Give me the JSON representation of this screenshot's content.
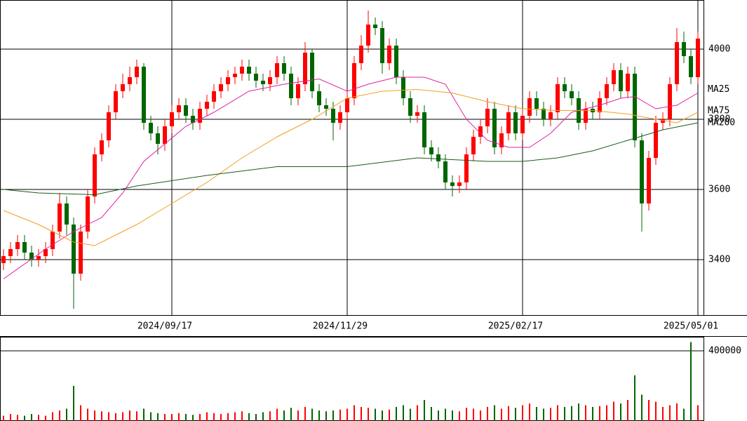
{
  "chart_data": [
    {
      "type": "candlestick",
      "xlim": [
        -0.5,
        99.8
      ],
      "xticks": [
        {
          "value": 24,
          "label": "2024/09/17"
        },
        {
          "value": 49,
          "label": "2024/11/29"
        },
        {
          "value": 74,
          "label": "2025/02/17"
        },
        {
          "value": 99,
          "label": "2025/05/01"
        }
      ],
      "ylim": [
        3240,
        4140
      ],
      "yticks": [
        3400,
        3600,
        3800,
        4000
      ],
      "grid": true,
      "up_color": "#ff0000",
      "down_color": "#006600",
      "open": [
        3390,
        3410,
        3430,
        3450,
        3420,
        3400,
        3410,
        3430,
        3480,
        3560,
        3500,
        3360,
        3480,
        3580,
        3700,
        3740,
        3820,
        3880,
        3900,
        3920,
        3950,
        3790,
        3760,
        3730,
        3780,
        3820,
        3840,
        3810,
        3790,
        3830,
        3850,
        3880,
        3900,
        3920,
        3930,
        3950,
        3930,
        3910,
        3900,
        3920,
        3960,
        3930,
        3860,
        3900,
        3990,
        3880,
        3840,
        3830,
        3790,
        3820,
        3860,
        3960,
        4010,
        4070,
        4060,
        3960,
        4010,
        3920,
        3860,
        3810,
        3820,
        3720,
        3700,
        3680,
        3620,
        3610,
        3620,
        3700,
        3750,
        3780,
        3830,
        3720,
        3760,
        3820,
        3760,
        3810,
        3860,
        3830,
        3800,
        3820,
        3900,
        3880,
        3860,
        3790,
        3830,
        3820,
        3860,
        3900,
        3940,
        3880,
        3930,
        3740,
        3560,
        3690,
        3790,
        3800,
        3900,
        4020,
        3980,
        3920
      ],
      "high": [
        3430,
        3450,
        3470,
        3470,
        3440,
        3430,
        3450,
        3500,
        3590,
        3580,
        3520,
        3500,
        3600,
        3720,
        3760,
        3840,
        3900,
        3930,
        3950,
        3970,
        3960,
        3810,
        3780,
        3800,
        3840,
        3860,
        3860,
        3830,
        3850,
        3870,
        3900,
        3920,
        3940,
        3950,
        3970,
        3970,
        3950,
        3930,
        3940,
        3980,
        3980,
        3950,
        3920,
        4020,
        4000,
        3900,
        3860,
        3850,
        3840,
        3880,
        3980,
        4040,
        4110,
        4090,
        4080,
        4030,
        4030,
        3940,
        3880,
        3840,
        3840,
        3740,
        3720,
        3700,
        3640,
        3640,
        3720,
        3770,
        3800,
        3860,
        3850,
        3780,
        3840,
        3840,
        3830,
        3880,
        3880,
        3850,
        3840,
        3920,
        3920,
        3900,
        3880,
        3850,
        3850,
        3880,
        3920,
        3960,
        3960,
        3950,
        3950,
        3760,
        3710,
        3810,
        3820,
        3920,
        4060,
        4050,
        4000,
        4050
      ],
      "low": [
        3370,
        3390,
        3410,
        3400,
        3380,
        3380,
        3390,
        3410,
        3460,
        3470,
        3260,
        3340,
        3460,
        3560,
        3680,
        3720,
        3800,
        3860,
        3880,
        3900,
        3770,
        3740,
        3700,
        3710,
        3760,
        3800,
        3790,
        3770,
        3770,
        3810,
        3830,
        3860,
        3880,
        3900,
        3910,
        3910,
        3890,
        3880,
        3880,
        3900,
        3910,
        3840,
        3840,
        3880,
        3860,
        3820,
        3810,
        3740,
        3770,
        3800,
        3840,
        3940,
        3990,
        4040,
        3930,
        3940,
        3900,
        3840,
        3790,
        3790,
        3700,
        3680,
        3660,
        3600,
        3580,
        3590,
        3600,
        3680,
        3730,
        3760,
        3700,
        3700,
        3740,
        3740,
        3740,
        3790,
        3810,
        3780,
        3780,
        3800,
        3860,
        3840,
        3770,
        3770,
        3800,
        3800,
        3840,
        3880,
        3860,
        3860,
        3720,
        3480,
        3540,
        3670,
        3770,
        3780,
        3880,
        3960,
        3900,
        3900
      ],
      "close": [
        3410,
        3430,
        3450,
        3420,
        3400,
        3410,
        3430,
        3480,
        3560,
        3500,
        3360,
        3480,
        3580,
        3700,
        3740,
        3820,
        3880,
        3900,
        3920,
        3950,
        3790,
        3760,
        3730,
        3780,
        3820,
        3840,
        3810,
        3790,
        3830,
        3850,
        3880,
        3900,
        3920,
        3930,
        3950,
        3930,
        3910,
        3900,
        3920,
        3960,
        3930,
        3860,
        3900,
        3990,
        3880,
        3840,
        3830,
        3790,
        3820,
        3860,
        3960,
        4010,
        4070,
        4060,
        3960,
        4010,
        3920,
        3860,
        3810,
        3820,
        3720,
        3700,
        3680,
        3620,
        3610,
        3620,
        3700,
        3750,
        3780,
        3830,
        3720,
        3760,
        3820,
        3760,
        3810,
        3860,
        3830,
        3800,
        3820,
        3900,
        3880,
        3860,
        3790,
        3830,
        3820,
        3860,
        3900,
        3940,
        3880,
        3930,
        3740,
        3560,
        3690,
        3790,
        3800,
        3900,
        4020,
        3980,
        3920,
        4030
      ],
      "lines": [
        {
          "name": "MA25",
          "color": "#e020a0",
          "x": [
            0,
            6,
            10,
            14,
            17,
            20,
            23,
            26,
            30,
            35,
            40,
            45,
            49,
            52,
            56,
            60,
            63,
            66,
            69,
            72,
            75,
            78,
            81,
            85,
            88,
            90,
            93,
            96,
            99
          ],
          "values": [
            3345,
            3430,
            3480,
            3520,
            3590,
            3680,
            3730,
            3780,
            3820,
            3880,
            3900,
            3915,
            3880,
            3900,
            3920,
            3920,
            3900,
            3800,
            3740,
            3720,
            3720,
            3760,
            3820,
            3840,
            3860,
            3865,
            3830,
            3840,
            3875
          ]
        },
        {
          "name": "MA75",
          "color": "#f0a020",
          "x": [
            0,
            5,
            10,
            13,
            19,
            24,
            29,
            34,
            39,
            44,
            49,
            54,
            59,
            64,
            69,
            74,
            79,
            84,
            89,
            93,
            96,
            99
          ],
          "values": [
            3540,
            3500,
            3450,
            3440,
            3500,
            3560,
            3620,
            3690,
            3750,
            3800,
            3860,
            3880,
            3885,
            3875,
            3850,
            3830,
            3825,
            3825,
            3815,
            3800,
            3790,
            3820
          ]
        },
        {
          "name": "MA200",
          "color": "#1a5c1a",
          "x": [
            0,
            5,
            13,
            19,
            29,
            39,
            49,
            59,
            69,
            74,
            79,
            84,
            89,
            94,
            99
          ],
          "values": [
            3600,
            3590,
            3585,
            3610,
            3640,
            3665,
            3665,
            3690,
            3680,
            3680,
            3690,
            3710,
            3740,
            3770,
            3790
          ]
        }
      ]
    },
    {
      "type": "bar",
      "xlim": [
        -0.5,
        99.8
      ],
      "ylim": [
        0,
        480000
      ],
      "yticks": [
        400000
      ],
      "grid": true,
      "values": [
        30000,
        40000,
        35000,
        30000,
        40000,
        35000,
        30000,
        50000,
        60000,
        70000,
        200000,
        90000,
        70000,
        60000,
        55000,
        50000,
        45000,
        50000,
        60000,
        55000,
        70000,
        50000,
        45000,
        40000,
        40000,
        45000,
        40000,
        35000,
        40000,
        50000,
        45000,
        40000,
        45000,
        50000,
        55000,
        45000,
        40000,
        50000,
        55000,
        70000,
        60000,
        75000,
        60000,
        80000,
        70000,
        60000,
        55000,
        60000,
        65000,
        70000,
        90000,
        80000,
        75000,
        70000,
        60000,
        65000,
        80000,
        90000,
        70000,
        90000,
        120000,
        80000,
        60000,
        70000,
        60000,
        55000,
        75000,
        70000,
        60000,
        80000,
        90000,
        70000,
        85000,
        75000,
        90000,
        100000,
        80000,
        70000,
        75000,
        90000,
        80000,
        85000,
        100000,
        90000,
        80000,
        85000,
        90000,
        110000,
        100000,
        120000,
        260000,
        150000,
        120000,
        110000,
        80000,
        90000,
        100000,
        70000,
        450000,
        90000
      ]
    }
  ]
}
